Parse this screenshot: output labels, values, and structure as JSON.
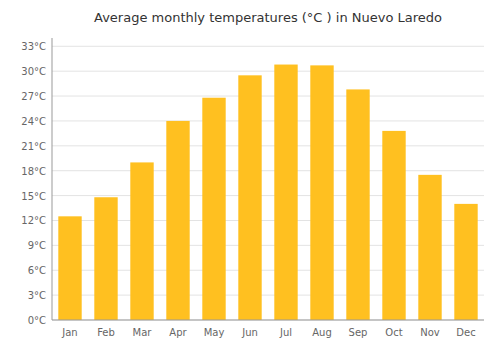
{
  "chart_data": {
    "type": "bar",
    "title": "Average monthly temperatures (°C ) in Nuevo Laredo",
    "categories": [
      "Jan",
      "Feb",
      "Mar",
      "Apr",
      "May",
      "Jun",
      "Jul",
      "Aug",
      "Sep",
      "Oct",
      "Nov",
      "Dec"
    ],
    "values": [
      12.5,
      14.8,
      19.0,
      24.0,
      26.8,
      29.5,
      30.8,
      30.7,
      27.8,
      22.8,
      17.5,
      14.0
    ],
    "color": "#FFC020",
    "ylim": [
      0,
      34
    ],
    "yticks": [
      {
        "value": 0,
        "label": "0°C"
      },
      {
        "value": 3,
        "label": "3°C"
      },
      {
        "value": 6,
        "label": "6°C"
      },
      {
        "value": 9,
        "label": "9°C"
      },
      {
        "value": 12,
        "label": "12°C"
      },
      {
        "value": 15,
        "label": "15°C"
      },
      {
        "value": 18,
        "label": "18°C"
      },
      {
        "value": 21,
        "label": "21°C"
      },
      {
        "value": 24,
        "label": "24°C"
      },
      {
        "value": 27,
        "label": "27°C"
      },
      {
        "value": 30,
        "label": "30°C"
      },
      {
        "value": 33,
        "label": "33°C"
      }
    ],
    "grid": true
  }
}
